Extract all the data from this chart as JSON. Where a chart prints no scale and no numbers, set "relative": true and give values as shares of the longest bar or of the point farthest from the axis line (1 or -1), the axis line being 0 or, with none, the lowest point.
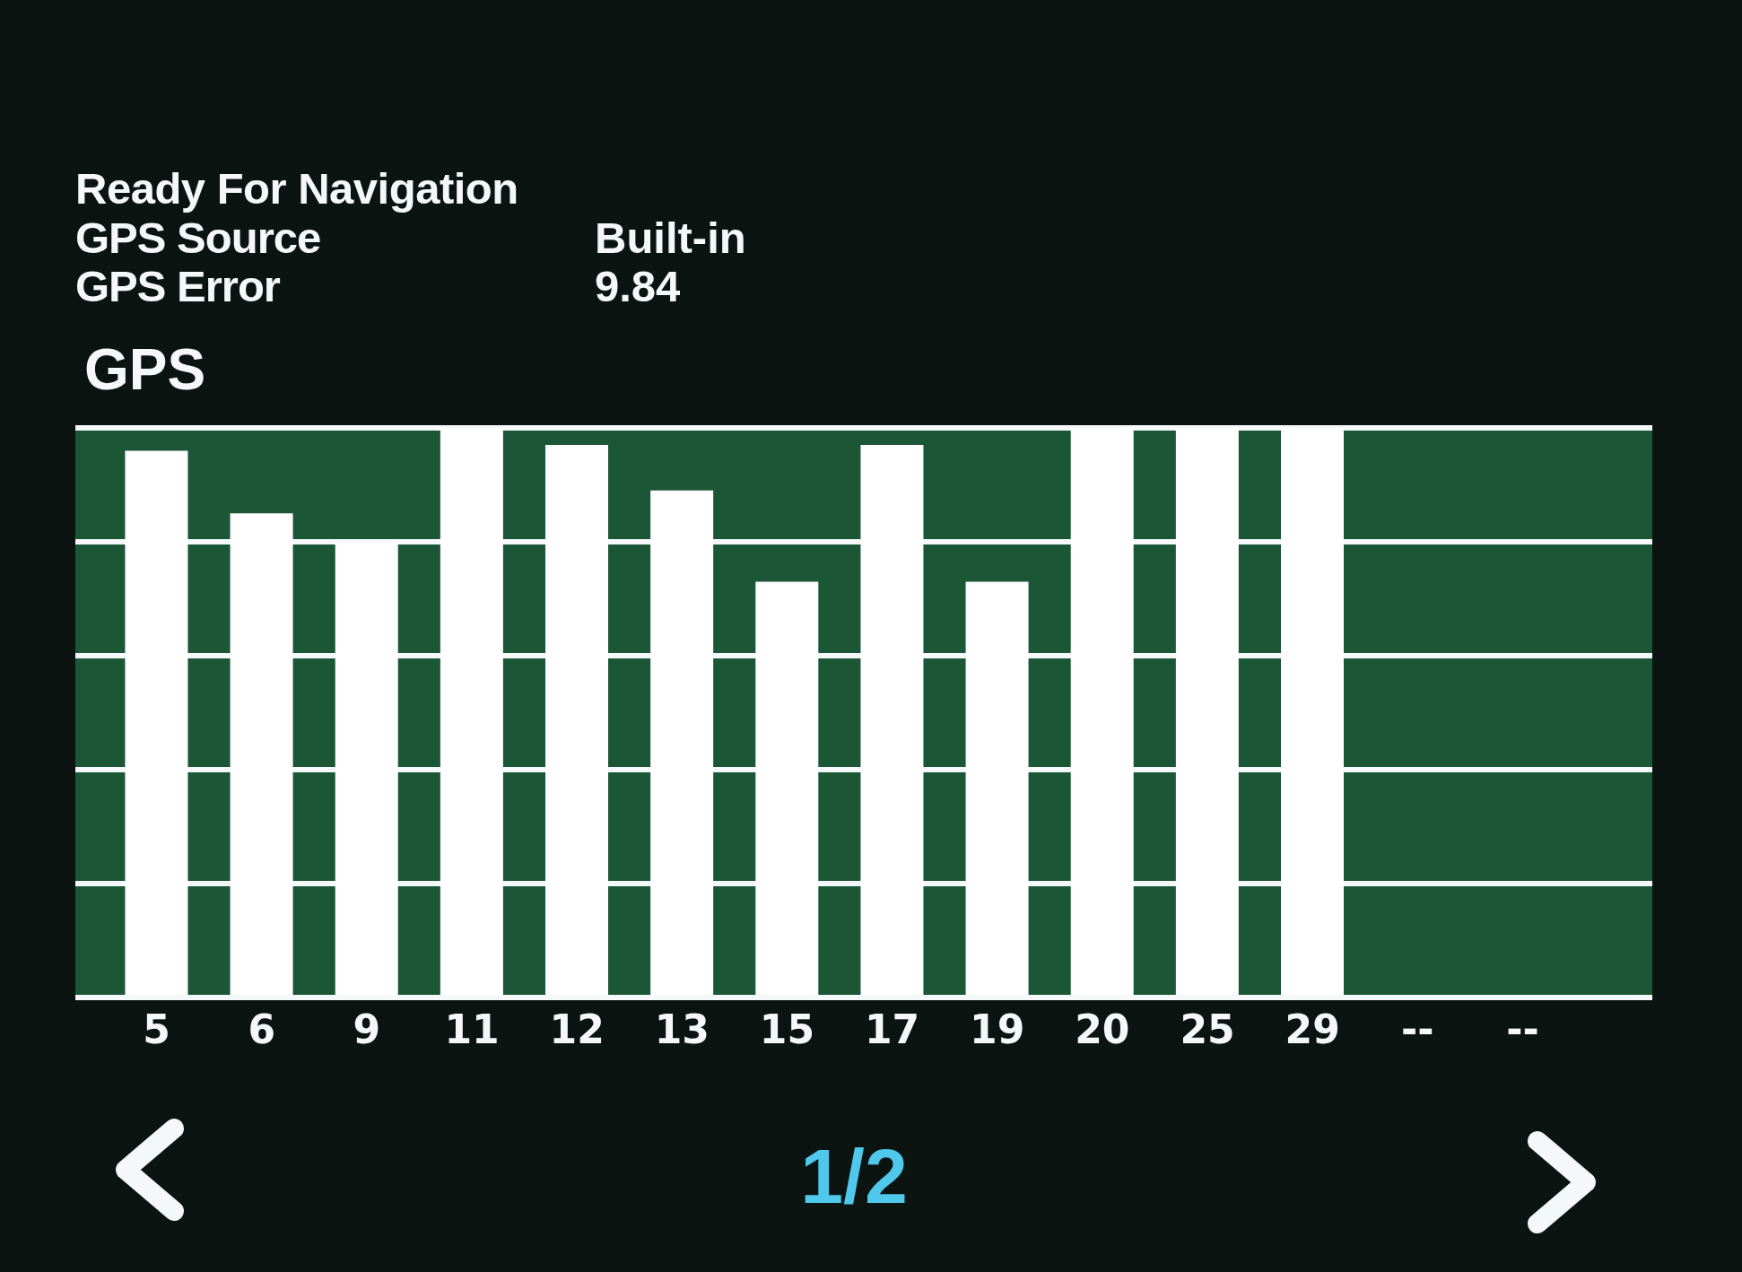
{
  "chart_data": {
    "type": "bar",
    "title": "GPS",
    "categories": [
      "5",
      "6",
      "9",
      "11",
      "12",
      "13",
      "15",
      "17",
      "19",
      "20",
      "25",
      "29",
      "--",
      "--"
    ],
    "values": [
      0.96,
      0.85,
      0.8,
      1,
      0.97,
      0.89,
      0.73,
      0.97,
      0.73,
      1,
      1,
      1,
      null,
      null
    ],
    "color": "#ffffff",
    "relative": true,
    "grid": "y",
    "annotations": [
      "Ready For Navigation",
      "GPS Source",
      "Built-in",
      "GPS Error",
      "9.84",
      "1/2"
    ]
  }
}
